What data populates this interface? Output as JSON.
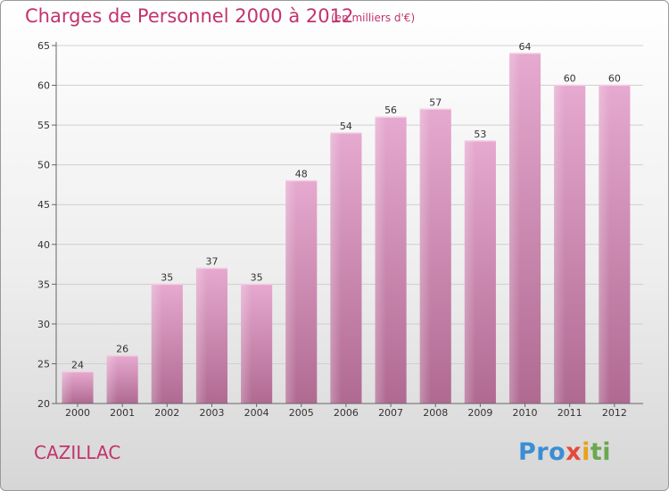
{
  "title": "Charges de Personnel 2000 à 2012",
  "subtitle": "(en milliers d'€)",
  "commune": "CAZILLAC",
  "logo": {
    "p1": "Pro",
    "p2": "x",
    "p3": "i",
    "p4": "ti"
  },
  "colors": {
    "title": "#c2336c",
    "bar_top": "#e6a9cf",
    "bar_bottom": "#b06a92"
  },
  "chart_data": {
    "type": "bar",
    "categories": [
      "2000",
      "2001",
      "2002",
      "2003",
      "2004",
      "2005",
      "2006",
      "2007",
      "2008",
      "2009",
      "2010",
      "2011",
      "2012"
    ],
    "values": [
      24,
      26,
      35,
      37,
      35,
      48,
      54,
      56,
      57,
      53,
      64,
      60,
      60
    ],
    "ylim": [
      20,
      65
    ],
    "yticks": [
      20,
      25,
      30,
      35,
      40,
      45,
      50,
      55,
      60,
      65
    ],
    "grid": true
  }
}
